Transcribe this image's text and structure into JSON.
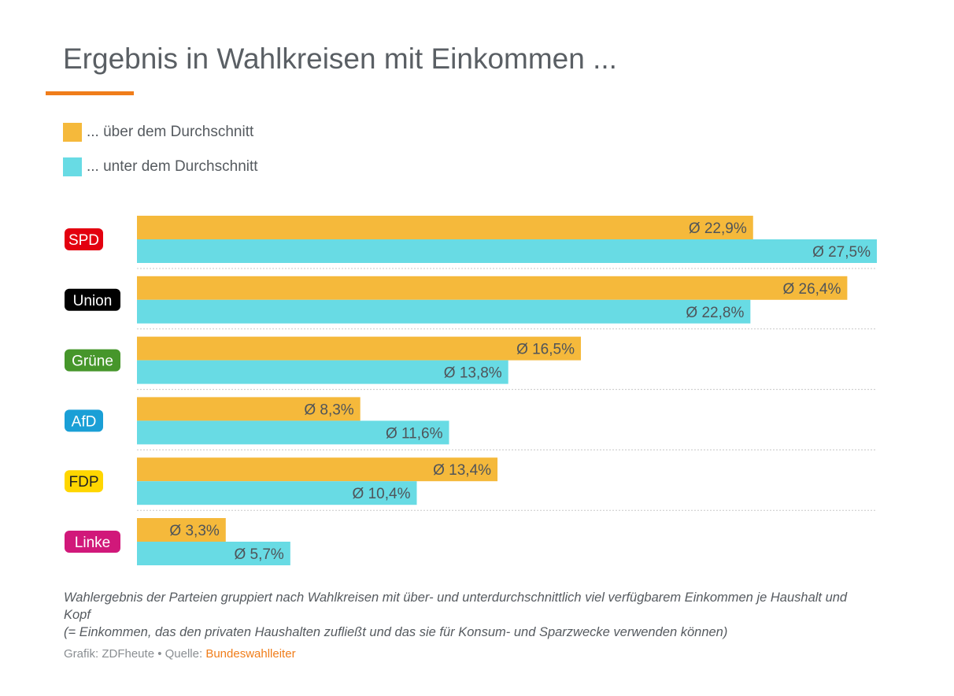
{
  "chart_data": {
    "type": "bar",
    "orientation": "horizontal",
    "title": "Ergebnis in Wahlkreisen mit Einkommen ...",
    "categories": [
      "SPD",
      "Union",
      "Grüne",
      "AfD",
      "FDP",
      "Linke"
    ],
    "category_colors": [
      "#e3000f",
      "#000000",
      "#46962b",
      "#1a9fd6",
      "#ffd600",
      "#d1187a"
    ],
    "category_text_colors": [
      "#ffffff",
      "#ffffff",
      "#ffffff",
      "#ffffff",
      "#222222",
      "#ffffff"
    ],
    "series": [
      {
        "name": "... über dem Durchschnitt",
        "color": "#f5b93b",
        "values": [
          22.9,
          26.4,
          16.5,
          8.3,
          13.4,
          3.3
        ],
        "labels": [
          "Ø 22,9%",
          "Ø 26,4%",
          "Ø 16,5%",
          "Ø 8,3%",
          "Ø 13,4%",
          "Ø 3,3%"
        ]
      },
      {
        "name": "... unter dem Durchschnitt",
        "color": "#68dbe4",
        "values": [
          27.5,
          22.8,
          13.8,
          11.6,
          10.4,
          5.7
        ],
        "labels": [
          "Ø 27,5%",
          "Ø 22,8%",
          "Ø 13,8%",
          "Ø 11,6%",
          "Ø 10,4%",
          "Ø 5,7%"
        ]
      }
    ],
    "xlim": [
      0,
      27.5
    ],
    "legend_position": "top-left",
    "grid": false
  },
  "note_line1": "Wahlergebnis der Parteien gruppiert nach Wahlkreisen mit über- und unterdurchschnittlich viel verfügbarem Einkommen je Haushalt und Kopf",
  "note_line2": "(= Einkommen, das den privaten Haushalten zufließt und das sie für Konsum- und Sparzwecke verwenden können)",
  "source_prefix": "Grafik: ZDFheute • Quelle: ",
  "source_link": "Bundeswahlleiter"
}
